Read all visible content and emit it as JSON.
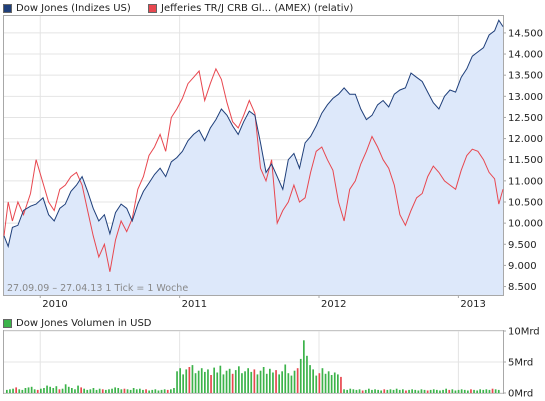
{
  "legend": {
    "series1": "Dow Jones (Indizes US)",
    "series2": "Jefferies TR/J CRB Gl... (AMEX) (relativ)",
    "volume": "Dow Jones Volumen in USD"
  },
  "note": "27.09.09 – 27.04.13   1 Tick = 1 Woche",
  "colors": {
    "dow_line": "#1f3f7a",
    "dow_fill": "#dde8fa",
    "crb_line": "#e8474f",
    "volume_bar": "#3cb34a",
    "volume_bar_red": "#e8474f",
    "grid": "#e4e4e4",
    "frame": "#a8a8a8"
  },
  "chart_data": [
    {
      "type": "line",
      "title": "",
      "x_tick_labels": [
        "2010",
        "2011",
        "2012",
        "2013"
      ],
      "y_tick_labels": [
        "8.500",
        "9.000",
        "9.500",
        "10.000",
        "10.500",
        "11.000",
        "11.500",
        "12.000",
        "12.500",
        "13.000",
        "13.500",
        "14.000",
        "14.500"
      ],
      "ylim": [
        8300,
        14900
      ],
      "xlim": [
        2009.74,
        2013.32
      ],
      "grid": true,
      "series": [
        {
          "name": "Dow Jones (Indizes US)",
          "points": [
            [
              2009.74,
              9700
            ],
            [
              2009.77,
              9450
            ],
            [
              2009.8,
              9900
            ],
            [
              2009.84,
              9950
            ],
            [
              2009.88,
              10300
            ],
            [
              2009.93,
              10400
            ],
            [
              2009.97,
              10450
            ],
            [
              2010.02,
              10600
            ],
            [
              2010.06,
              10200
            ],
            [
              2010.1,
              10050
            ],
            [
              2010.14,
              10350
            ],
            [
              2010.18,
              10450
            ],
            [
              2010.22,
              10750
            ],
            [
              2010.26,
              10900
            ],
            [
              2010.3,
              11100
            ],
            [
              2010.34,
              10750
            ],
            [
              2010.38,
              10350
            ],
            [
              2010.42,
              10050
            ],
            [
              2010.46,
              10200
            ],
            [
              2010.5,
              9750
            ],
            [
              2010.54,
              10250
            ],
            [
              2010.58,
              10450
            ],
            [
              2010.62,
              10350
            ],
            [
              2010.66,
              10050
            ],
            [
              2010.7,
              10450
            ],
            [
              2010.74,
              10750
            ],
            [
              2010.78,
              10950
            ],
            [
              2010.82,
              11150
            ],
            [
              2010.86,
              11300
            ],
            [
              2010.9,
              11100
            ],
            [
              2010.94,
              11450
            ],
            [
              2010.98,
              11550
            ],
            [
              2011.02,
              11700
            ],
            [
              2011.06,
              11950
            ],
            [
              2011.1,
              12100
            ],
            [
              2011.14,
              12200
            ],
            [
              2011.18,
              11950
            ],
            [
              2011.22,
              12250
            ],
            [
              2011.26,
              12450
            ],
            [
              2011.3,
              12700
            ],
            [
              2011.34,
              12550
            ],
            [
              2011.38,
              12300
            ],
            [
              2011.42,
              12100
            ],
            [
              2011.46,
              12400
            ],
            [
              2011.5,
              12650
            ],
            [
              2011.54,
              12550
            ],
            [
              2011.58,
              11900
            ],
            [
              2011.62,
              11200
            ],
            [
              2011.66,
              11400
            ],
            [
              2011.7,
              11100
            ],
            [
              2011.74,
              10800
            ],
            [
              2011.78,
              11500
            ],
            [
              2011.82,
              11650
            ],
            [
              2011.86,
              11300
            ],
            [
              2011.9,
              11900
            ],
            [
              2011.94,
              12050
            ],
            [
              2011.98,
              12300
            ],
            [
              2012.02,
              12600
            ],
            [
              2012.06,
              12800
            ],
            [
              2012.1,
              12950
            ],
            [
              2012.14,
              13050
            ],
            [
              2012.18,
              13200
            ],
            [
              2012.22,
              13050
            ],
            [
              2012.26,
              13050
            ],
            [
              2012.3,
              12700
            ],
            [
              2012.34,
              12450
            ],
            [
              2012.38,
              12550
            ],
            [
              2012.42,
              12800
            ],
            [
              2012.46,
              12900
            ],
            [
              2012.5,
              12750
            ],
            [
              2012.54,
              13050
            ],
            [
              2012.58,
              13150
            ],
            [
              2012.62,
              13200
            ],
            [
              2012.66,
              13550
            ],
            [
              2012.7,
              13450
            ],
            [
              2012.74,
              13350
            ],
            [
              2012.78,
              13100
            ],
            [
              2012.82,
              12850
            ],
            [
              2012.86,
              12700
            ],
            [
              2012.9,
              13000
            ],
            [
              2012.94,
              13150
            ],
            [
              2012.98,
              13100
            ],
            [
              2013.02,
              13450
            ],
            [
              2013.06,
              13650
            ],
            [
              2013.1,
              13950
            ],
            [
              2013.14,
              14050
            ],
            [
              2013.18,
              14150
            ],
            [
              2013.22,
              14450
            ],
            [
              2013.26,
              14550
            ],
            [
              2013.29,
              14800
            ],
            [
              2013.32,
              14650
            ]
          ]
        },
        {
          "name": "Jefferies TR/J CRB Gl... (AMEX) (relativ)",
          "points": [
            [
              2009.74,
              9700
            ],
            [
              2009.77,
              10500
            ],
            [
              2009.8,
              10050
            ],
            [
              2009.84,
              10500
            ],
            [
              2009.88,
              10200
            ],
            [
              2009.93,
              10700
            ],
            [
              2009.97,
              11500
            ],
            [
              2010.02,
              10950
            ],
            [
              2010.06,
              10500
            ],
            [
              2010.1,
              10300
            ],
            [
              2010.14,
              10800
            ],
            [
              2010.18,
              10900
            ],
            [
              2010.22,
              11100
            ],
            [
              2010.26,
              11200
            ],
            [
              2010.3,
              10900
            ],
            [
              2010.34,
              10300
            ],
            [
              2010.38,
              9700
            ],
            [
              2010.42,
              9200
            ],
            [
              2010.46,
              9500
            ],
            [
              2010.5,
              8850
            ],
            [
              2010.54,
              9600
            ],
            [
              2010.58,
              10050
            ],
            [
              2010.62,
              9800
            ],
            [
              2010.66,
              10100
            ],
            [
              2010.7,
              10800
            ],
            [
              2010.74,
              11100
            ],
            [
              2010.78,
              11600
            ],
            [
              2010.82,
              11800
            ],
            [
              2010.86,
              12100
            ],
            [
              2010.9,
              11700
            ],
            [
              2010.94,
              12500
            ],
            [
              2010.98,
              12700
            ],
            [
              2011.02,
              12950
            ],
            [
              2011.06,
              13300
            ],
            [
              2011.1,
              13450
            ],
            [
              2011.14,
              13600
            ],
            [
              2011.18,
              12900
            ],
            [
              2011.22,
              13300
            ],
            [
              2011.26,
              13650
            ],
            [
              2011.3,
              13400
            ],
            [
              2011.34,
              12850
            ],
            [
              2011.38,
              12400
            ],
            [
              2011.42,
              12250
            ],
            [
              2011.46,
              12550
            ],
            [
              2011.5,
              12900
            ],
            [
              2011.54,
              12600
            ],
            [
              2011.58,
              11300
            ],
            [
              2011.62,
              11000
            ],
            [
              2011.66,
              11500
            ],
            [
              2011.7,
              10000
            ],
            [
              2011.74,
              10300
            ],
            [
              2011.78,
              10500
            ],
            [
              2011.82,
              10900
            ],
            [
              2011.86,
              10500
            ],
            [
              2011.9,
              10600
            ],
            [
              2011.94,
              11200
            ],
            [
              2011.98,
              11700
            ],
            [
              2012.02,
              11800
            ],
            [
              2012.06,
              11500
            ],
            [
              2012.1,
              11250
            ],
            [
              2012.14,
              10500
            ],
            [
              2012.18,
              10050
            ],
            [
              2012.22,
              10800
            ],
            [
              2012.26,
              11000
            ],
            [
              2012.3,
              11400
            ],
            [
              2012.34,
              11700
            ],
            [
              2012.38,
              12050
            ],
            [
              2012.42,
              11800
            ],
            [
              2012.46,
              11500
            ],
            [
              2012.5,
              11300
            ],
            [
              2012.54,
              10900
            ],
            [
              2012.58,
              10200
            ],
            [
              2012.62,
              9950
            ],
            [
              2012.66,
              10300
            ],
            [
              2012.7,
              10600
            ],
            [
              2012.74,
              10700
            ],
            [
              2012.78,
              11100
            ],
            [
              2012.82,
              11350
            ],
            [
              2012.86,
              11200
            ],
            [
              2012.9,
              11000
            ],
            [
              2012.94,
              10900
            ],
            [
              2012.98,
              10800
            ],
            [
              2013.02,
              11250
            ],
            [
              2013.06,
              11600
            ],
            [
              2013.1,
              11750
            ],
            [
              2013.14,
              11700
            ],
            [
              2013.18,
              11500
            ],
            [
              2013.22,
              11200
            ],
            [
              2013.26,
              11050
            ],
            [
              2013.29,
              10450
            ],
            [
              2013.32,
              10800
            ]
          ]
        }
      ]
    },
    {
      "type": "bar",
      "title": "Dow Jones Volumen in USD",
      "y_tick_labels": [
        "0Mrd",
        "5Mrd",
        "10Mrd"
      ],
      "ylim": [
        0,
        10
      ],
      "unit": "Mrd",
      "series": [
        {
          "name": "Dow Jones Volumen in USD",
          "values": [
            0.5,
            0.6,
            0.7,
            0.9,
            0.6,
            0.5,
            0.8,
            0.9,
            1.0,
            0.6,
            0.5,
            0.7,
            0.8,
            1.2,
            1.0,
            0.8,
            1.1,
            0.6,
            0.7,
            1.4,
            1.0,
            0.8,
            0.6,
            1.2,
            0.9,
            0.7,
            0.5,
            0.6,
            0.8,
            0.5,
            0.7,
            0.6,
            0.5,
            0.6,
            0.7,
            0.9,
            0.8,
            0.6,
            0.7,
            0.6,
            0.5,
            0.8,
            0.6,
            0.7,
            0.5,
            0.6,
            0.4,
            0.5,
            0.6,
            0.4,
            0.5,
            0.6,
            0.5,
            0.6,
            0.8,
            3.5,
            4.0,
            3.0,
            3.8,
            4.2,
            4.5,
            3.2,
            3.6,
            4.0,
            3.4,
            3.8,
            2.9,
            4.1,
            3.3,
            4.4,
            3.0,
            3.6,
            3.9,
            3.1,
            3.7,
            4.3,
            3.2,
            3.5,
            4.0,
            3.4,
            3.8,
            3.0,
            3.6,
            4.2,
            3.1,
            3.9,
            3.3,
            3.7,
            3.0,
            3.5,
            4.6,
            3.2,
            2.8,
            3.6,
            4.0,
            5.5,
            8.5,
            6.0,
            4.5,
            3.8,
            2.8,
            3.2,
            4.0,
            3.1,
            3.5,
            2.9,
            3.3,
            3.0,
            2.6,
            0.6,
            0.5,
            0.7,
            0.6,
            0.5,
            0.6,
            0.4,
            0.5,
            0.7,
            0.5,
            0.6,
            0.5,
            0.4,
            0.6,
            0.5,
            0.6,
            0.5,
            0.7,
            0.5,
            0.6,
            0.4,
            0.5,
            0.6,
            0.5,
            0.4,
            0.6,
            0.5,
            0.4,
            0.5,
            0.6,
            0.5,
            0.4,
            0.5,
            0.7,
            0.5,
            0.6,
            0.4,
            0.5,
            0.6,
            0.5,
            0.4,
            0.6,
            0.5,
            0.4,
            0.6,
            0.5,
            0.6,
            0.5,
            0.7,
            0.6,
            0.5
          ]
        }
      ]
    }
  ]
}
